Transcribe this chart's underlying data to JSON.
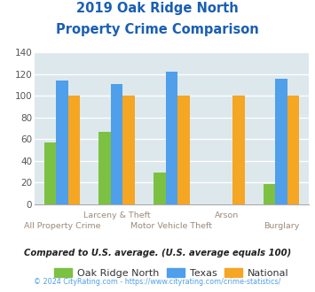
{
  "title_line1": "2019 Oak Ridge North",
  "title_line2": "Property Crime Comparison",
  "categories": [
    "All Property Crime",
    "Larceny & Theft",
    "Motor Vehicle Theft",
    "Arson",
    "Burglary"
  ],
  "category_labels_row1": [
    "",
    "Larceny & Theft",
    "",
    "Arson",
    ""
  ],
  "category_labels_row2": [
    "All Property Crime",
    "",
    "Motor Vehicle Theft",
    "",
    "Burglary"
  ],
  "oak_ridge": [
    57,
    67,
    29,
    0,
    19
  ],
  "texas": [
    114,
    111,
    122,
    0,
    116
  ],
  "national": [
    100,
    100,
    100,
    100,
    100
  ],
  "color_oak": "#7cc142",
  "color_texas": "#4f9fea",
  "color_national": "#f5a623",
  "ylim": [
    0,
    140
  ],
  "yticks": [
    0,
    20,
    40,
    60,
    80,
    100,
    120,
    140
  ],
  "bg_color": "#dde8ed",
  "title_color": "#1a5fb4",
  "label_color": "#9b8b7a",
  "copyright_color": "#4f9fea",
  "subtitle_text": "Compared to U.S. average. (U.S. average equals 100)",
  "copyright_text": "© 2024 CityRating.com - https://www.cityrating.com/crime-statistics/",
  "legend_labels": [
    "Oak Ridge North",
    "Texas",
    "National"
  ],
  "bar_width": 0.22
}
